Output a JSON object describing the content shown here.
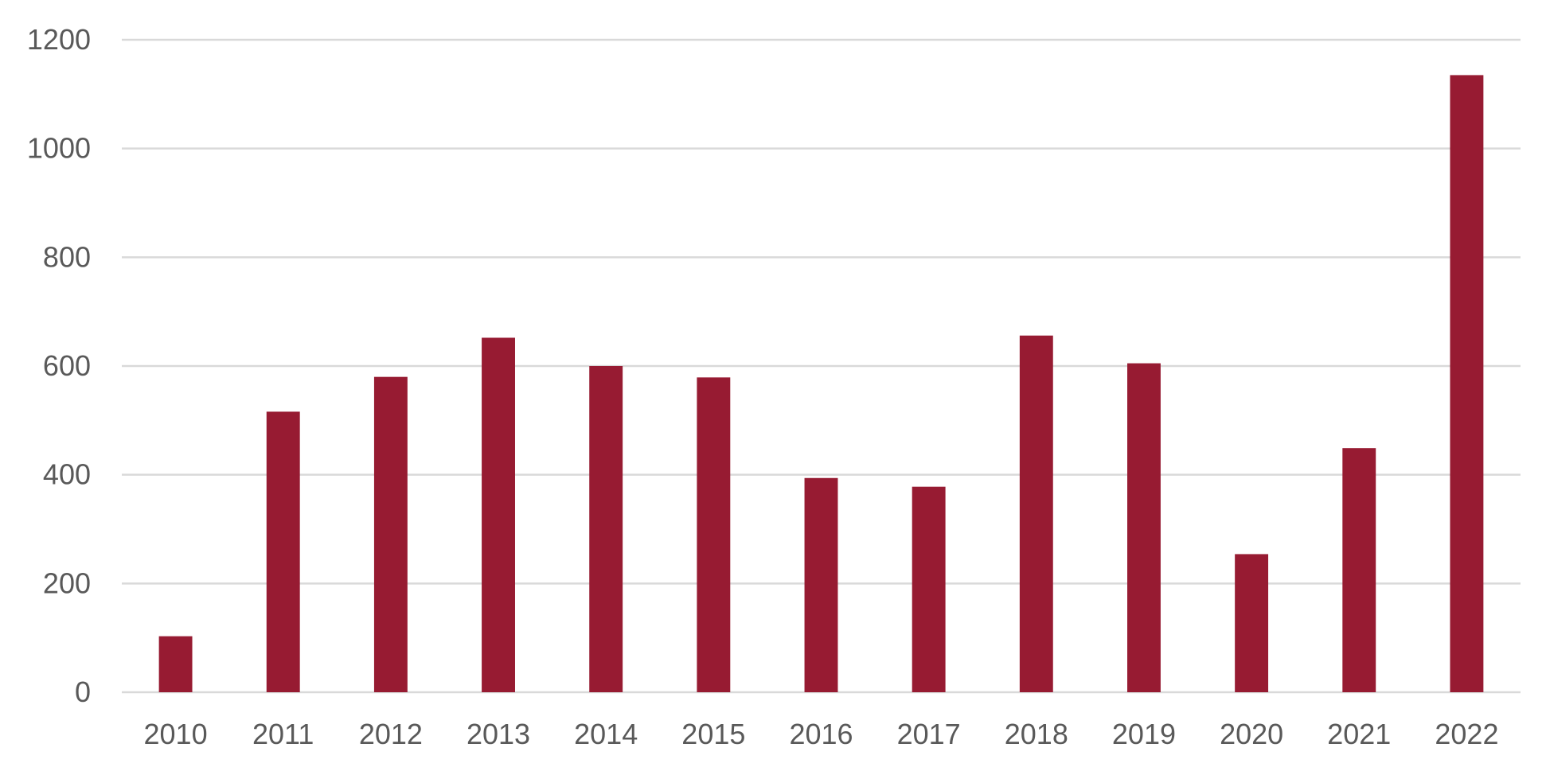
{
  "chart_data": {
    "type": "bar",
    "title": "",
    "xlabel": "",
    "ylabel": "",
    "categories": [
      "2010",
      "2011",
      "2012",
      "2013",
      "2014",
      "2015",
      "2016",
      "2017",
      "2018",
      "2019",
      "2020",
      "2021",
      "2022"
    ],
    "values": [
      103,
      516,
      580,
      652,
      600,
      579,
      394,
      378,
      656,
      605,
      254,
      449,
      1135
    ],
    "ylim": [
      0,
      1200
    ],
    "yticks": [
      "0",
      "200",
      "400",
      "600",
      "800",
      "1000",
      "1200"
    ],
    "grid": true,
    "legend": "none",
    "bar_color": "#971b32"
  }
}
